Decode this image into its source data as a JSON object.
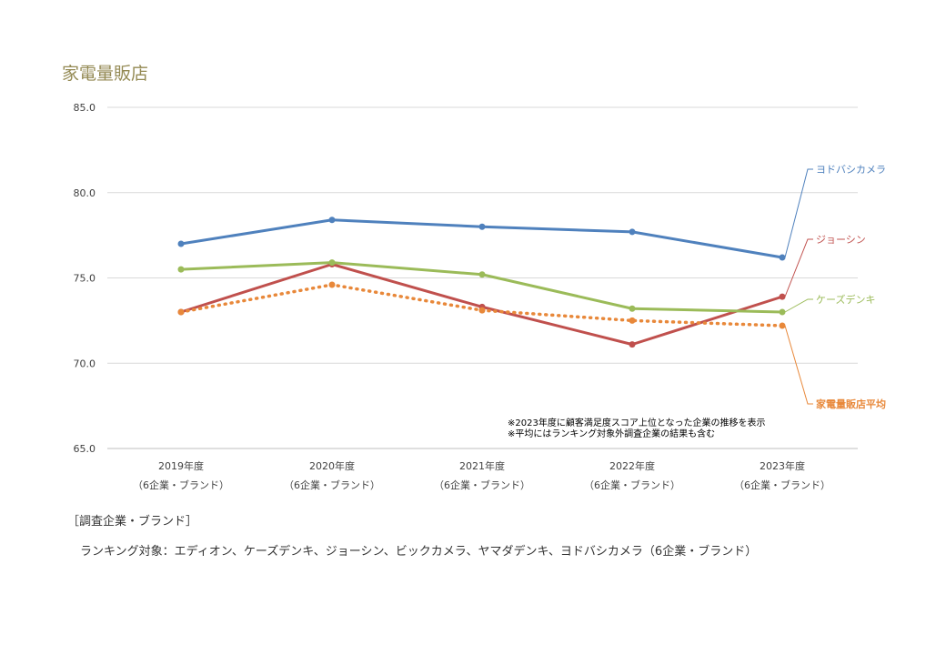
{
  "chart_data": {
    "type": "line",
    "title": "家電量販店",
    "categories": [
      {
        "year": "2019年度",
        "sub": "（6企業・ブランド）"
      },
      {
        "year": "2020年度",
        "sub": "（6企業・ブランド）"
      },
      {
        "year": "2021年度",
        "sub": "（6企業・ブランド）"
      },
      {
        "year": "2022年度",
        "sub": "（6企業・ブランド）"
      },
      {
        "year": "2023年度",
        "sub": "（6企業・ブランド）"
      }
    ],
    "ylim": [
      65.0,
      85.0
    ],
    "yticks": [
      "65.0",
      "70.0",
      "75.0",
      "80.0",
      "85.0"
    ],
    "grid": true,
    "series": [
      {
        "name": "ヨドバシカメラ",
        "color": "#4f81bd",
        "values": [
          77.0,
          78.4,
          78.0,
          77.7,
          76.2
        ],
        "dashed": false,
        "bold": false
      },
      {
        "name": "ジョーシン",
        "color": "#c0504d",
        "values": [
          73.0,
          75.8,
          73.3,
          71.1,
          73.9
        ],
        "dashed": false,
        "bold": false
      },
      {
        "name": "ケーズデンキ",
        "color": "#9bbb59",
        "values": [
          75.5,
          75.9,
          75.2,
          73.2,
          73.0
        ],
        "dashed": false,
        "bold": false
      },
      {
        "name": "家電量販店平均",
        "color": "#e8883a",
        "values": [
          73.0,
          74.6,
          73.1,
          72.5,
          72.2
        ],
        "dashed": true,
        "bold": true
      }
    ],
    "annotations": [
      "※2023年度に顧客満足度スコア上位となった企業の推移を表示",
      "※平均にはランキング対象外調査企業の結果も含む"
    ]
  },
  "footer": {
    "header": "［調査企業・ブランド］",
    "list": "ランキング対象：エディオン、ケーズデンキ、ジョーシン、ビックカメラ、ヤマダデンキ、ヨドバシカメラ（6企業・ブランド）"
  }
}
